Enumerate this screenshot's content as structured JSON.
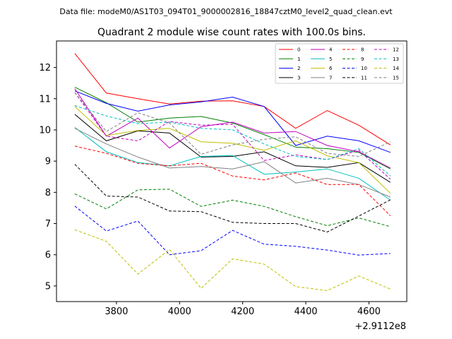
{
  "header": {
    "data_file": "Data file: modeM0/AS1T03_094T01_9000002816_18847cztM0_level2_quad_clean.evt"
  },
  "chart_data": {
    "type": "line",
    "title": "Quadrant 2 module wise count rates with 100.0s bins.",
    "xlabel": "",
    "ylabel": "",
    "x_offset_label": "+2.9112e8",
    "xlim": [
      3610,
      4720
    ],
    "ylim": [
      4.5,
      12.85
    ],
    "xticks": [
      3800,
      4000,
      4200,
      4400,
      4600
    ],
    "yticks": [
      5,
      6,
      7,
      8,
      9,
      10,
      11,
      12
    ],
    "legend_position": "top-right",
    "x": [
      3668,
      3768,
      3868,
      3968,
      4068,
      4168,
      4268,
      4368,
      4468,
      4568,
      4668
    ],
    "series": [
      {
        "name": "0",
        "color": "#ff0000",
        "dash": false,
        "values": [
          12.45,
          11.18,
          11.0,
          10.83,
          10.92,
          10.93,
          10.75,
          10.05,
          10.62,
          10.15,
          9.52
        ]
      },
      {
        "name": "1",
        "color": "#008000",
        "dash": false,
        "values": [
          11.37,
          10.87,
          10.25,
          10.38,
          10.43,
          10.22,
          9.85,
          9.45,
          9.4,
          9.28,
          8.75
        ]
      },
      {
        "name": "2",
        "color": "#0000ff",
        "dash": false,
        "values": [
          11.25,
          10.85,
          10.6,
          10.8,
          10.9,
          11.05,
          10.75,
          9.5,
          9.8,
          9.65,
          9.28
        ]
      },
      {
        "name": "3",
        "color": "#000000",
        "dash": false,
        "values": [
          10.5,
          9.65,
          9.97,
          9.9,
          9.13,
          9.15,
          9.3,
          8.85,
          8.8,
          8.95,
          8.32
        ]
      },
      {
        "name": "4",
        "color": "#c000c0",
        "dash": false,
        "values": [
          11.32,
          9.8,
          10.38,
          9.42,
          10.1,
          10.25,
          9.9,
          9.95,
          9.5,
          9.3,
          8.78
        ]
      },
      {
        "name": "5",
        "color": "#00bfbf",
        "dash": false,
        "values": [
          10.08,
          9.3,
          8.95,
          8.85,
          9.15,
          9.18,
          8.58,
          8.65,
          8.75,
          8.45,
          7.75
        ]
      },
      {
        "name": "6",
        "color": "#bfbf00",
        "dash": false,
        "values": [
          10.75,
          9.82,
          9.98,
          10.05,
          9.62,
          9.57,
          9.35,
          9.65,
          9.17,
          8.95,
          7.97
        ]
      },
      {
        "name": "7",
        "color": "#808080",
        "dash": false,
        "values": [
          10.05,
          9.55,
          9.13,
          8.78,
          8.83,
          8.75,
          8.98,
          8.3,
          8.45,
          8.25,
          7.85
        ]
      },
      {
        "name": "8",
        "color": "#ff0000",
        "dash": true,
        "values": [
          9.48,
          9.25,
          8.93,
          8.85,
          8.93,
          8.52,
          8.4,
          8.62,
          8.25,
          8.25,
          7.25
        ]
      },
      {
        "name": "9",
        "color": "#008000",
        "dash": true,
        "values": [
          7.95,
          7.47,
          8.08,
          8.1,
          7.55,
          7.75,
          7.55,
          7.22,
          6.93,
          7.18,
          6.9
        ]
      },
      {
        "name": "10",
        "color": "#0000ff",
        "dash": true,
        "values": [
          7.56,
          6.76,
          7.08,
          6.0,
          6.13,
          6.78,
          6.34,
          6.27,
          6.15,
          5.99,
          6.04
        ]
      },
      {
        "name": "11",
        "color": "#000000",
        "dash": true,
        "values": [
          8.9,
          7.88,
          7.85,
          7.4,
          7.38,
          7.04,
          7.0,
          7.0,
          6.73,
          7.24,
          7.76
        ]
      },
      {
        "name": "12",
        "color": "#c000c0",
        "dash": true,
        "values": [
          11.2,
          9.8,
          9.65,
          10.27,
          10.15,
          10.18,
          9.02,
          9.2,
          9.05,
          9.35,
          8.42
        ]
      },
      {
        "name": "13",
        "color": "#00bfbf",
        "dash": true,
        "values": [
          10.78,
          10.45,
          10.2,
          10.25,
          10.05,
          10.0,
          9.55,
          9.15,
          9.05,
          9.4,
          8.52
        ]
      },
      {
        "name": "14",
        "color": "#bfbf00",
        "dash": true,
        "values": [
          6.8,
          6.43,
          5.38,
          6.17,
          4.92,
          5.87,
          5.7,
          4.98,
          4.85,
          5.32,
          4.9
        ]
      },
      {
        "name": "15",
        "color": "#808080",
        "dash": true,
        "values": [
          11.2,
          9.95,
          10.55,
          10.22,
          9.22,
          9.52,
          9.7,
          9.78,
          9.25,
          9.15,
          9.62
        ]
      }
    ]
  }
}
